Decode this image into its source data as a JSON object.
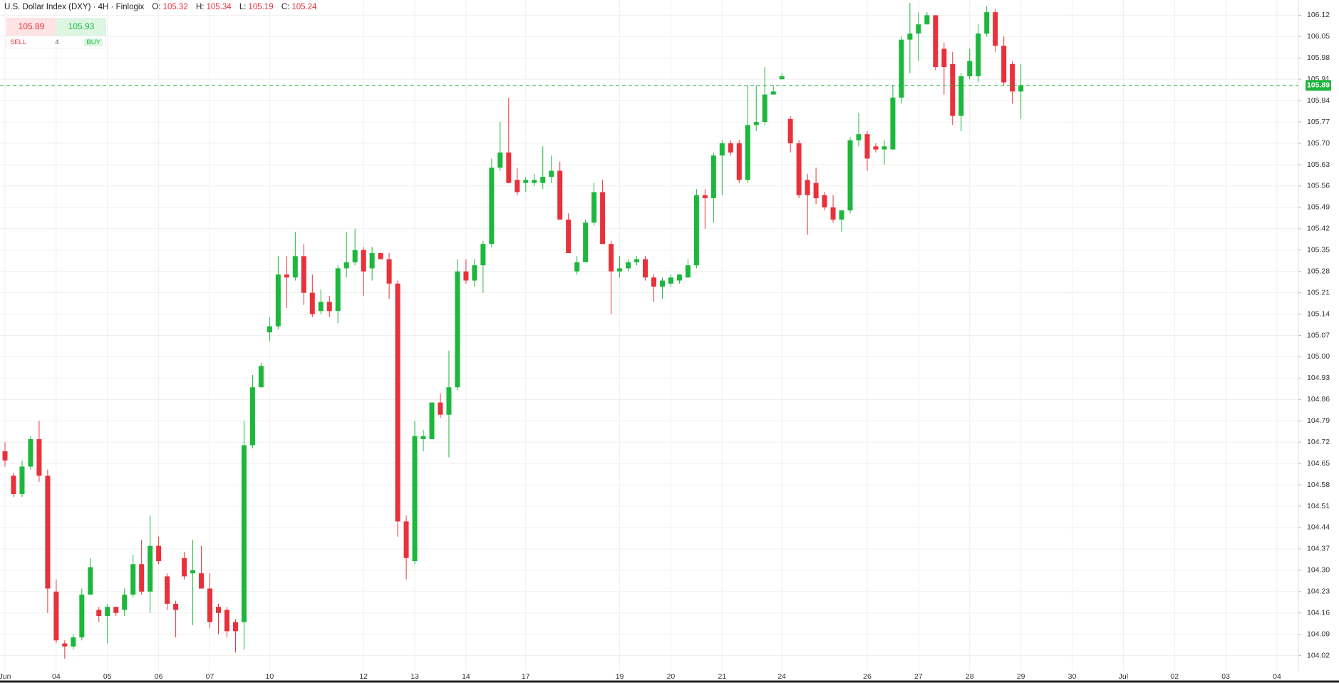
{
  "header": {
    "title": "U.S. Dollar Index (DXY) · 4H · Finlogix",
    "ohlc": [
      {
        "label": "O:",
        "value": 105.32
      },
      {
        "label": "H:",
        "value": 105.34
      },
      {
        "label": "L:",
        "value": 105.19
      },
      {
        "label": "C:",
        "value": 105.24
      }
    ]
  },
  "trade_panel": {
    "sell_price": 105.89,
    "buy_price": 105.93,
    "sell_label": "SELL",
    "buy_label": "BUY",
    "spread": 4
  },
  "chart_data": {
    "type": "candlestick",
    "categories": [
      "Jun",
      null,
      null,
      null,
      null,
      null,
      "04",
      null,
      null,
      null,
      null,
      null,
      "05",
      null,
      null,
      null,
      null,
      null,
      "06",
      null,
      null,
      null,
      null,
      null,
      "07",
      null,
      null,
      null,
      null,
      null,
      null,
      "10",
      null,
      null,
      null,
      null,
      null,
      null,
      null,
      null,
      null,
      null,
      "12",
      null,
      null,
      null,
      null,
      null,
      "13",
      null,
      null,
      null,
      null,
      null,
      "14",
      null,
      null,
      null,
      null,
      null,
      null,
      "17",
      null,
      null,
      null,
      null,
      null,
      null,
      null,
      null,
      null,
      null,
      "19",
      null,
      null,
      null,
      null,
      null,
      "20",
      null,
      null,
      null,
      null,
      null,
      "21",
      null,
      null,
      null,
      null,
      null,
      null,
      "24",
      null,
      null,
      null,
      null,
      null,
      null,
      null,
      null,
      null,
      "26",
      null,
      null,
      null,
      null,
      null,
      "27",
      null,
      null,
      null,
      null,
      null,
      "28",
      null,
      null,
      null,
      null,
      null,
      "29",
      null,
      null,
      null,
      null,
      null,
      "30",
      null,
      null,
      null,
      null,
      null,
      "Jul",
      null,
      null,
      null,
      null,
      null,
      "02",
      null,
      null,
      null,
      null,
      null,
      "03",
      null,
      null,
      null,
      null,
      null,
      "04",
      null,
      null
    ],
    "open": [
      104.69,
      104.61,
      104.55,
      104.64,
      104.73,
      104.61,
      104.23,
      104.06,
      104.05,
      104.08,
      104.22,
      104.17,
      104.15,
      104.18,
      104.17,
      104.22,
      104.32,
      104.23,
      104.38,
      104.28,
      104.19,
      104.34,
      104.29,
      104.29,
      104.24,
      104.18,
      104.17,
      104.13,
      104.13,
      104.71,
      104.9,
      105.08,
      105.1,
      105.27,
      105.26,
      105.33,
      105.21,
      105.15,
      105.18,
      105.15,
      105.29,
      105.31,
      105.35,
      105.29,
      105.34,
      105.32,
      105.24,
      104.46,
      104.33,
      104.73,
      104.73,
      104.85,
      104.81,
      104.9,
      105.28,
      105.25,
      105.3,
      105.37,
      105.62,
      105.67,
      105.58,
      105.57,
      105.57,
      105.57,
      105.59,
      105.61,
      105.45,
      105.28,
      105.31,
      105.44,
      105.54,
      105.37,
      105.28,
      105.29,
      105.31,
      105.32,
      105.26,
      105.23,
      105.24,
      105.25,
      105.26,
      105.3,
      105.53,
      105.52,
      105.66,
      105.7,
      105.7,
      105.58,
      105.76,
      105.77,
      105.86,
      105.91,
      105.78,
      105.7,
      105.58,
      105.57,
      105.53,
      105.49,
      105.45,
      105.48,
      105.71,
      105.73,
      105.69,
      105.68,
      105.68,
      105.85,
      106.04,
      106.06,
      106.09,
      106.12,
      106.01,
      105.96,
      105.79,
      105.92,
      105.92,
      106.06,
      106.13,
      106.02,
      105.96,
      105.87,
      null,
      null,
      null,
      null,
      null,
      null,
      null,
      null,
      null,
      null,
      null,
      null,
      null,
      null,
      null,
      null,
      null,
      null,
      null,
      null,
      null,
      null,
      null,
      null,
      null,
      null,
      null,
      null,
      null,
      null,
      null,
      null
    ],
    "high": [
      104.72,
      104.62,
      104.66,
      104.74,
      104.79,
      104.63,
      104.27,
      104.07,
      104.09,
      104.24,
      104.34,
      104.18,
      104.19,
      104.18,
      104.24,
      104.35,
      104.4,
      104.48,
      104.41,
      104.29,
      104.2,
      104.36,
      104.4,
      104.38,
      104.29,
      104.19,
      104.18,
      104.14,
      104.79,
      104.94,
      104.98,
      105.13,
      105.33,
      105.33,
      105.41,
      105.37,
      105.27,
      105.22,
      105.2,
      105.3,
      105.41,
      105.42,
      105.36,
      105.36,
      105.34,
      105.34,
      105.25,
      104.48,
      104.79,
      104.76,
      104.85,
      104.88,
      105.02,
      105.32,
      105.32,
      105.32,
      105.38,
      105.65,
      105.77,
      105.85,
      105.62,
      105.59,
      105.6,
      105.69,
      105.66,
      105.64,
      105.47,
      105.33,
      105.45,
      105.57,
      105.58,
      105.38,
      105.33,
      105.32,
      105.33,
      105.33,
      105.27,
      105.26,
      105.27,
      105.27,
      105.32,
      105.55,
      105.55,
      105.67,
      105.71,
      105.71,
      105.71,
      105.89,
      105.89,
      105.95,
      105.89,
      105.93,
      105.79,
      105.71,
      105.6,
      105.62,
      105.54,
      105.53,
      105.48,
      105.72,
      105.8,
      105.74,
      105.7,
      105.71,
      105.89,
      106.05,
      106.16,
      106.13,
      106.13,
      106.12,
      106.03,
      106.0,
      105.93,
      106.01,
      106.09,
      106.15,
      106.14,
      106.05,
      105.97,
      105.96,
      null,
      null,
      null,
      null,
      null,
      null,
      null,
      null,
      null,
      null,
      null,
      null,
      null,
      null,
      null,
      null,
      null,
      null,
      null,
      null,
      null,
      null,
      null,
      null,
      null,
      null,
      null,
      null,
      null,
      null,
      null,
      null
    ],
    "low": [
      104.64,
      104.54,
      104.54,
      104.63,
      104.59,
      104.16,
      104.06,
      104.01,
      104.04,
      104.07,
      104.22,
      104.13,
      104.06,
      104.15,
      104.15,
      104.21,
      104.22,
      104.16,
      104.32,
      104.17,
      104.08,
      104.27,
      104.12,
      104.24,
      104.11,
      104.09,
      104.08,
      104.03,
      104.04,
      104.7,
      104.9,
      105.05,
      105.09,
      105.16,
      105.25,
      105.17,
      105.13,
      105.14,
      105.13,
      105.11,
      105.26,
      105.3,
      105.2,
      105.25,
      105.32,
      105.19,
      104.41,
      104.27,
      104.32,
      104.69,
      104.73,
      104.8,
      104.67,
      104.89,
      105.24,
      105.23,
      105.21,
      105.36,
      105.61,
      105.57,
      105.53,
      105.54,
      105.56,
      105.55,
      105.57,
      105.45,
      105.34,
      105.27,
      105.31,
      105.43,
      105.37,
      105.14,
      105.26,
      105.28,
      105.3,
      105.25,
      105.18,
      105.19,
      105.23,
      105.24,
      105.26,
      105.29,
      105.42,
      105.44,
      105.53,
      105.66,
      105.57,
      105.57,
      105.74,
      105.76,
      105.86,
      105.91,
      105.67,
      105.52,
      105.4,
      105.5,
      105.48,
      105.44,
      105.41,
      105.47,
      105.69,
      105.61,
      105.67,
      105.63,
      105.68,
      105.83,
      105.93,
      105.97,
      106.09,
      105.94,
      105.86,
      105.76,
      105.74,
      105.91,
      105.9,
      106.05,
      106.0,
      105.89,
      105.83,
      105.78,
      null,
      null,
      null,
      null,
      null,
      null,
      null,
      null,
      null,
      null,
      null,
      null,
      null,
      null,
      null,
      null,
      null,
      null,
      null,
      null,
      null,
      null,
      null,
      null,
      null,
      null,
      null,
      null,
      null,
      null,
      null,
      null
    ],
    "close": [
      104.66,
      104.55,
      104.64,
      104.73,
      104.61,
      104.24,
      104.07,
      104.05,
      104.08,
      104.22,
      104.31,
      104.15,
      104.18,
      104.16,
      104.22,
      104.32,
      104.23,
      104.38,
      104.33,
      104.19,
      104.17,
      104.28,
      104.3,
      104.24,
      104.13,
      104.16,
      104.1,
      104.1,
      104.71,
      104.9,
      104.97,
      105.1,
      105.27,
      105.26,
      105.33,
      105.21,
      105.14,
      105.18,
      105.15,
      105.29,
      105.31,
      105.35,
      105.28,
      105.34,
      105.32,
      105.24,
      104.46,
      104.34,
      104.74,
      104.74,
      104.85,
      104.81,
      104.9,
      105.28,
      105.25,
      105.3,
      105.37,
      105.62,
      105.67,
      105.57,
      105.54,
      105.58,
      105.58,
      105.59,
      105.61,
      105.45,
      105.34,
      105.31,
      105.44,
      105.54,
      105.37,
      105.28,
      105.29,
      105.31,
      105.32,
      105.26,
      105.23,
      105.25,
      105.26,
      105.27,
      105.3,
      105.53,
      105.52,
      105.66,
      105.7,
      105.67,
      105.58,
      105.76,
      105.77,
      105.86,
      105.87,
      105.92,
      105.7,
      105.53,
      105.53,
      105.52,
      105.49,
      105.45,
      105.48,
      105.71,
      105.73,
      105.65,
      105.68,
      105.69,
      105.85,
      106.04,
      106.06,
      106.09,
      106.12,
      105.95,
      105.95,
      105.79,
      105.92,
      105.97,
      106.06,
      106.13,
      106.02,
      105.9,
      105.87,
      105.89,
      null,
      null,
      null,
      null,
      null,
      null,
      null,
      null,
      null,
      null,
      null,
      null,
      null,
      null,
      null,
      null,
      null,
      null,
      null,
      null,
      null,
      null,
      null,
      null,
      null,
      null,
      null,
      null,
      null,
      null,
      null,
      null
    ],
    "up_color": "#1cb83c",
    "down_color": "#e8313a",
    "ylim": [
      103.97,
      106.17
    ],
    "yticks": [
      104.02,
      104.09,
      104.16,
      104.23,
      {
        "value": 104.3,
        "label": "104.30"
      },
      104.37,
      104.44,
      104.51,
      104.58,
      104.65,
      104.72,
      104.79,
      104.86,
      104.93,
      {
        "value": 105,
        "label": "105.00"
      },
      105.07,
      105.14,
      105.21,
      105.28,
      105.35,
      105.42,
      105.49,
      105.56,
      105.63,
      {
        "value": 105.7,
        "label": "105.70"
      },
      105.77,
      105.84,
      105.91,
      105.98,
      106.05,
      106.12
    ],
    "grid": true,
    "last_price": 105.89,
    "last_price_color": "#1fb53d"
  }
}
